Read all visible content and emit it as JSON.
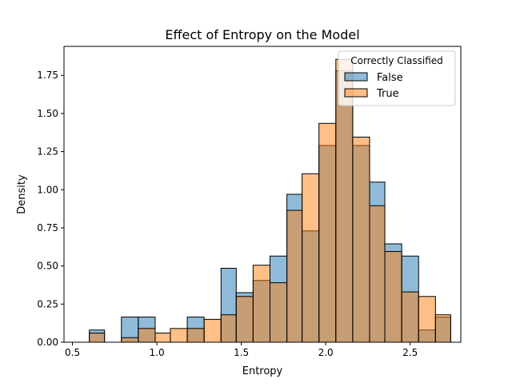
{
  "chart_data": {
    "type": "bar",
    "title": "Effect of Entropy on the Model",
    "xlabel": "Entropy",
    "ylabel": "Density",
    "xlim": [
      0.45,
      2.8
    ],
    "ylim": [
      0,
      1.94
    ],
    "xticks": [
      {
        "value": 0.5,
        "label": "0.5"
      },
      {
        "value": 1.0,
        "label": "1.0"
      },
      {
        "value": 1.5,
        "label": "1.5"
      },
      {
        "value": 2.0,
        "label": "2.0"
      },
      {
        "value": 2.5,
        "label": "2.5"
      }
    ],
    "yticks": [
      {
        "value": 0.0,
        "label": "0.00"
      },
      {
        "value": 0.25,
        "label": "0.25"
      },
      {
        "value": 0.5,
        "label": "0.50"
      },
      {
        "value": 0.75,
        "label": "0.75"
      },
      {
        "value": 1.0,
        "label": "1.00"
      },
      {
        "value": 1.25,
        "label": "1.25"
      },
      {
        "value": 1.5,
        "label": "1.50"
      },
      {
        "value": 1.75,
        "label": "1.75"
      }
    ],
    "grid": false,
    "legend": {
      "title": "Correctly Classified",
      "position": "top-right"
    },
    "bin_edges": [
      0.6,
      0.69,
      0.79,
      0.89,
      0.99,
      1.08,
      1.18,
      1.28,
      1.38,
      1.47,
      1.57,
      1.67,
      1.77,
      1.86,
      1.96,
      2.06,
      2.16,
      2.26,
      2.35,
      2.45,
      2.55,
      2.65,
      2.74
    ],
    "series": [
      {
        "name": "False",
        "color": "#1f77b4",
        "alpha": 0.5,
        "values": [
          0.08,
          0.0,
          0.165,
          0.165,
          0.0,
          0.0,
          0.165,
          0.0,
          0.485,
          0.325,
          0.405,
          0.565,
          0.97,
          0.73,
          1.29,
          1.78,
          1.29,
          1.05,
          0.645,
          0.565,
          0.08,
          0.165,
          0.0
        ]
      },
      {
        "name": "True",
        "color": "#ff7f0e",
        "alpha": 0.5,
        "values": [
          0.06,
          0.0,
          0.03,
          0.09,
          0.06,
          0.09,
          0.09,
          0.15,
          0.18,
          0.3,
          0.505,
          0.39,
          0.865,
          1.105,
          1.435,
          1.855,
          1.345,
          0.895,
          0.595,
          0.33,
          0.3,
          0.18,
          0.06
        ]
      }
    ]
  }
}
